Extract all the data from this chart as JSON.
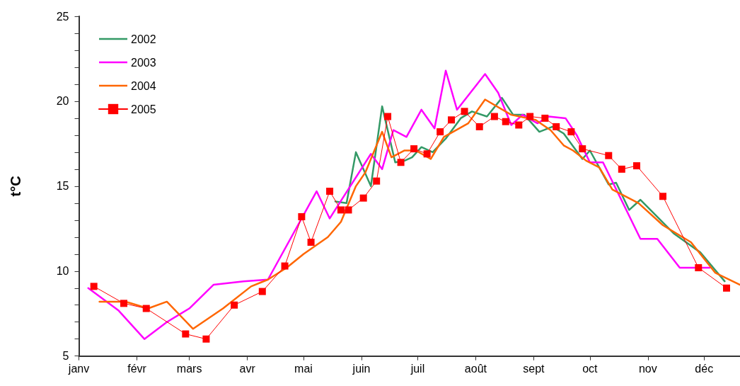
{
  "chart_data": {
    "type": "line",
    "ylabel": "t°C",
    "legend": "top left",
    "grid": false,
    "line_style": "solid",
    "xlim": [
      "--01-01",
      "--12-20"
    ],
    "xticks": [
      {
        "value": "--01-01",
        "label": "janv"
      },
      {
        "value": "--02-01",
        "label": "févr"
      },
      {
        "value": "--03-01",
        "label": "mars"
      },
      {
        "value": "--04-01",
        "label": "avr"
      },
      {
        "value": "--05-01",
        "label": "mai"
      },
      {
        "value": "--06-01",
        "label": "juin"
      },
      {
        "value": "--07-01",
        "label": "juil"
      },
      {
        "value": "--08-01",
        "label": "août"
      },
      {
        "value": "--09-01",
        "label": "sept"
      },
      {
        "value": "--10-01",
        "label": "oct"
      },
      {
        "value": "--11-01",
        "label": "nov"
      },
      {
        "value": "--12-01",
        "label": "déc"
      }
    ],
    "ylim": [
      5,
      25
    ],
    "yticks": [
      5,
      {
        "value": 6,
        "label": null
      },
      {
        "value": 7,
        "label": null
      },
      {
        "value": 8,
        "label": null
      },
      {
        "value": 9,
        "label": null
      },
      10,
      {
        "value": 11,
        "label": null
      },
      {
        "value": 12,
        "label": null
      },
      {
        "value": 13,
        "label": null
      },
      {
        "value": 14,
        "label": null
      },
      15,
      {
        "value": 16,
        "label": null
      },
      {
        "value": 17,
        "label": null
      },
      {
        "value": 18,
        "label": null
      },
      {
        "value": 19,
        "label": null
      },
      20,
      {
        "value": 21,
        "label": null
      },
      {
        "value": 22,
        "label": null
      },
      {
        "value": 23,
        "label": null
      },
      {
        "value": 24,
        "label": null
      },
      25
    ],
    "series": [
      {
        "name": "2002",
        "color": "#339966",
        "marker": "none",
        "x": [
          "--05-18",
          "--05-24",
          "--05-29",
          "--06-06",
          "--06-12",
          "--06-19",
          "--06-24",
          "--06-28",
          "--07-03",
          "--07-09",
          "--07-16",
          "--07-24",
          "--07-30",
          "--08-07",
          "--08-15",
          "--08-21",
          "--08-27",
          "--09-04",
          "--09-11",
          "--09-17",
          "--09-27",
          "--10-01",
          "--10-11",
          "--10-15",
          "--10-22",
          "--10-28",
          "--11-15",
          "--11-29",
          "--12-12"
        ],
        "values": [
          14.1,
          14.0,
          17.0,
          15.0,
          19.7,
          16.4,
          16.5,
          16.7,
          17.3,
          17.0,
          17.8,
          19.0,
          19.4,
          19.1,
          20.2,
          19.2,
          19.2,
          18.2,
          18.5,
          18.1,
          16.6,
          17.1,
          15.1,
          15.2,
          13.6,
          14.2,
          12.2,
          11.1,
          9.4
        ]
      },
      {
        "name": "2003",
        "color": "#ff00ff",
        "marker": "none",
        "x": [
          "--01-06",
          "--01-22",
          "--02-05",
          "--02-17",
          "--03-01",
          "--03-14",
          "--03-30",
          "--04-12",
          "--05-08",
          "--05-15",
          "--06-06",
          "--06-12",
          "--06-18",
          "--06-25",
          "--07-03",
          "--07-10",
          "--07-16",
          "--07-22",
          "--08-06",
          "--08-13",
          "--08-20",
          "--08-26",
          "--09-03",
          "--09-09",
          "--09-18",
          "--09-24",
          "--10-01",
          "--10-08",
          "--10-28",
          "--11-06",
          "--11-18",
          "--12-04"
        ],
        "values": [
          9.0,
          7.7,
          6.0,
          7.0,
          7.8,
          9.2,
          9.4,
          9.5,
          14.7,
          13.1,
          16.9,
          16.0,
          18.3,
          17.9,
          19.5,
          18.4,
          21.8,
          19.5,
          21.6,
          20.5,
          18.6,
          19.2,
          18.7,
          19.1,
          19.0,
          18.0,
          16.4,
          16.4,
          11.9,
          11.9,
          10.2,
          10.2
        ]
      },
      {
        "name": "2004",
        "color": "#ff6600",
        "marker": "none",
        "x": [
          "--01-12",
          "--01-26",
          "--02-07",
          "--02-17",
          "--03-03",
          "--03-19",
          "--04-03",
          "--04-12",
          "--04-22",
          "--05-01",
          "--05-14",
          "--05-21",
          "--05-29",
          "--06-03",
          "--06-12",
          "--06-17",
          "--06-24",
          "--06-30",
          "--07-08",
          "--07-15",
          "--07-28",
          "--08-06",
          "--08-20",
          "--09-02",
          "--09-10",
          "--09-17",
          "--09-22",
          "--09-29",
          "--10-06",
          "--10-13",
          "--10-27",
          "--11-09",
          "--11-24",
          "--12-07",
          "--12-20"
        ],
        "values": [
          8.2,
          8.2,
          7.8,
          8.2,
          6.6,
          7.8,
          9.1,
          9.5,
          10.2,
          11.0,
          12.0,
          12.9,
          15.0,
          15.8,
          18.2,
          16.7,
          17.1,
          17.1,
          16.6,
          17.9,
          18.7,
          20.1,
          19.2,
          18.9,
          18.3,
          17.4,
          17.1,
          16.5,
          16.1,
          14.8,
          14.0,
          12.7,
          11.7,
          9.9,
          9.2
        ]
      },
      {
        "name": "2005",
        "color": "#ff0000",
        "marker": "square",
        "x": [
          "--01-09",
          "--01-25",
          "--02-06",
          "--02-27",
          "--03-10",
          "--03-25",
          "--04-09",
          "--04-21",
          "--04-30",
          "--05-05",
          "--05-15",
          "--05-21",
          "--05-25",
          "--06-02",
          "--06-09",
          "--06-15",
          "--06-22",
          "--06-29",
          "--07-06",
          "--07-13",
          "--07-19",
          "--07-26",
          "--08-03",
          "--08-11",
          "--08-17",
          "--08-24",
          "--08-30",
          "--09-07",
          "--09-13",
          "--09-21",
          "--09-27",
          "--10-11",
          "--10-18",
          "--10-26",
          "--11-09",
          "--11-28",
          "--12-13"
        ],
        "values": [
          9.1,
          8.1,
          7.8,
          6.3,
          6.0,
          8.0,
          8.8,
          10.3,
          13.2,
          11.7,
          14.7,
          13.6,
          13.6,
          14.3,
          15.3,
          19.1,
          16.4,
          17.2,
          16.9,
          18.2,
          18.9,
          19.4,
          18.5,
          19.1,
          18.8,
          18.6,
          19.1,
          19.0,
          18.5,
          18.2,
          17.2,
          16.8,
          16.0,
          16.2,
          14.4,
          10.2,
          9.0
        ]
      }
    ]
  }
}
